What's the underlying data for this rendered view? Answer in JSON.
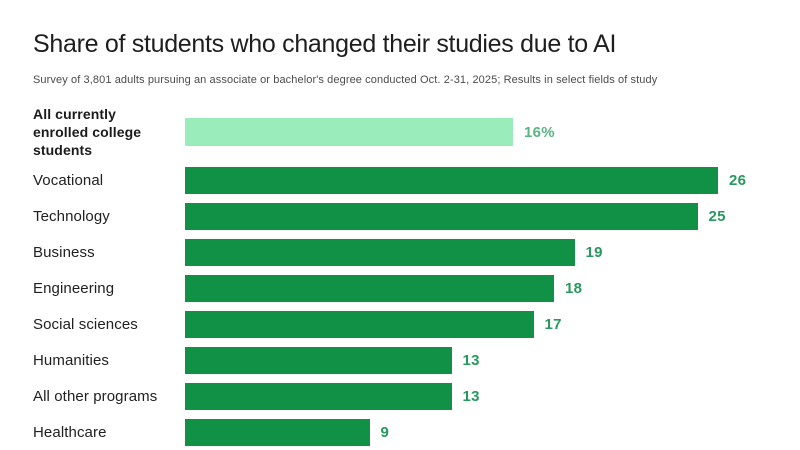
{
  "header": {
    "title": "Share of students who changed their studies due to AI",
    "subtitle": "Survey of 3,801 adults pursuing an associate or bachelor's degree conducted Oct. 2-31, 2025; Results in select fields of study"
  },
  "chart_data": {
    "type": "bar",
    "orientation": "horizontal",
    "title": "Share of students who changed their studies due to AI",
    "subtitle": "Survey of 3,801 adults pursuing an associate or bachelor's degree conducted Oct. 2-31, 2025; Results in select fields of study",
    "xlabel": "",
    "ylabel": "",
    "xlim": [
      0,
      26
    ],
    "grid": false,
    "legend": false,
    "categories": [
      "All currently enrolled college students",
      "Vocational",
      "Technology",
      "Business",
      "Engineering",
      "Social sciences",
      "Humanities",
      "All other programs",
      "Healthcare"
    ],
    "values": [
      16,
      26,
      25,
      19,
      18,
      17,
      13,
      13,
      9
    ],
    "bars": [
      {
        "label": "All currently enrolled college students",
        "value": 16,
        "display": "16%",
        "highlight": true
      },
      {
        "label": "Vocational",
        "value": 26,
        "display": "26",
        "highlight": false
      },
      {
        "label": "Technology",
        "value": 25,
        "display": "25",
        "highlight": false
      },
      {
        "label": "Business",
        "value": 19,
        "display": "19",
        "highlight": false
      },
      {
        "label": "Engineering",
        "value": 18,
        "display": "18",
        "highlight": false
      },
      {
        "label": "Social sciences",
        "value": 17,
        "display": "17",
        "highlight": false
      },
      {
        "label": "Humanities",
        "value": 13,
        "display": "13",
        "highlight": false
      },
      {
        "label": "All other programs",
        "value": 13,
        "display": "13",
        "highlight": false
      },
      {
        "label": "Healthcare",
        "value": 9,
        "display": "9",
        "highlight": false
      }
    ],
    "colors": {
      "bar_primary": "#119146",
      "bar_highlight": "#9becbb",
      "value_primary": "#27995c",
      "value_highlight": "#57b584"
    }
  }
}
